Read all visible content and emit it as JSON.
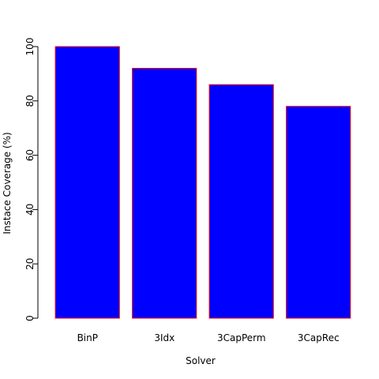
{
  "chart_data": {
    "type": "bar",
    "title": "",
    "xlabel": "Solver",
    "ylabel": "Instace Coverage (%)",
    "categories": [
      "BinP",
      "3Idx",
      "3CapPerm",
      "3CapRec"
    ],
    "values": [
      100,
      92,
      86,
      78
    ],
    "ylim": [
      0,
      100
    ],
    "yticks": [
      0,
      20,
      40,
      60,
      80,
      100
    ],
    "grid": false,
    "legend": "none",
    "colors": {
      "fill": "#0000ff",
      "border": "#ff0000"
    }
  }
}
